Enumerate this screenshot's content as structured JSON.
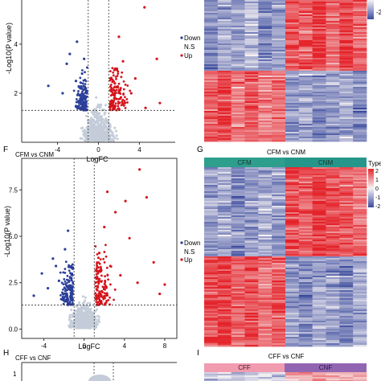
{
  "panel_letters": [
    "F",
    "G",
    "H",
    "I"
  ],
  "legend": {
    "items": [
      {
        "label": "Down",
        "color": "#2b3f9a"
      },
      {
        "label": "N.S",
        "color": "#c3ccd8"
      },
      {
        "label": "Up",
        "color": "#d4141c"
      }
    ]
  },
  "heatmap_colors": {
    "low": "#3a4a9c",
    "mid": "#f6f2f4",
    "high": "#e4232a"
  },
  "group_colors": {
    "CFM": "#2e9e8d",
    "CNM": "#27968a",
    "CFF": "#f19bb0",
    "CNF": "#9265b2"
  },
  "chart_data": [
    {
      "type": "scatter",
      "panel": "E",
      "title": "",
      "xlabel": "LogFC",
      "ylabel": "-Log10(P value)",
      "x_ticks": [
        "-4",
        "0",
        "4"
      ],
      "y_ticks": [
        "2",
        "4"
      ],
      "xlim": [
        -7.5,
        7.5
      ],
      "ylim": [
        0,
        5.8
      ],
      "thresholds": {
        "logfc": [
          -1,
          1
        ],
        "neg_log10_p": 1.3
      },
      "series": [
        {
          "name": "Down",
          "color": "#2b3f9a",
          "points": [
            [
              -4.9,
              2.3
            ],
            [
              -3.1,
              3.2
            ],
            [
              -2.2,
              2.5
            ],
            [
              -2.8,
              3.6
            ],
            [
              -1.6,
              2.8
            ],
            [
              -2.1,
              4.1
            ],
            [
              -1.3,
              1.8
            ],
            [
              -3.5,
              2.0
            ],
            [
              -1.9,
              1.6
            ],
            [
              -1.4,
              3.4
            ]
          ]
        },
        {
          "name": "N.S",
          "color": "#c3ccd8",
          "points": []
        },
        {
          "name": "Up",
          "color": "#d4141c",
          "points": [
            [
              1.6,
              2.4
            ],
            [
              2.4,
              3.3
            ],
            [
              1.3,
              1.7
            ],
            [
              3.2,
              2.0
            ],
            [
              2.0,
              4.3
            ],
            [
              1.8,
              3.0
            ],
            [
              3.6,
              2.6
            ],
            [
              4.6,
              1.4
            ],
            [
              1.2,
              2.1
            ],
            [
              2.6,
              1.6
            ]
          ]
        }
      ],
      "outliers": [
        [
          4.5,
          5.5
        ],
        [
          6.0,
          1.6
        ],
        [
          5.7,
          3.4
        ]
      ]
    },
    {
      "type": "heatmap",
      "panel": "E-heatmap",
      "title": "",
      "rows": 2,
      "columns": 12,
      "values": [
        [
          -0.6,
          -0.4,
          -0.5,
          -0.3,
          -0.6,
          -0.5,
          0.8,
          0.7,
          0.9,
          0.6,
          0.8,
          0.7
        ],
        [
          0.7,
          0.8,
          0.6,
          0.7,
          0.5,
          0.6,
          -0.5,
          -0.4,
          -0.6,
          -0.5,
          -0.4,
          -0.6
        ]
      ],
      "scale_ticks": [
        "-2"
      ]
    },
    {
      "type": "scatter",
      "panel": "F",
      "title": "CFM vs CNM",
      "xlabel": "LogFC",
      "ylabel": "-Log10(P value)",
      "x_ticks": [
        "-4",
        "0",
        "4",
        "8"
      ],
      "y_ticks": [
        "0.0",
        "2.5",
        "5.0",
        "7.5"
      ],
      "xlim": [
        -6.2,
        9.2
      ],
      "ylim": [
        -0.5,
        9.2
      ],
      "thresholds": {
        "logfc": [
          -1,
          1
        ],
        "neg_log10_p": 1.3
      },
      "series": [
        {
          "name": "Down",
          "color": "#2b3f9a",
          "points": [
            [
              -3.1,
              3.8
            ],
            [
              -1.6,
              5.3
            ],
            [
              -2.5,
              2.6
            ],
            [
              -1.3,
              1.9
            ],
            [
              -4.2,
              3.0
            ],
            [
              -1.9,
              4.3
            ],
            [
              -3.6,
              2.2
            ],
            [
              -2.2,
              1.6
            ],
            [
              -1.4,
              2.8
            ],
            [
              -5.0,
              1.8
            ],
            [
              -2.8,
              3.4
            ],
            [
              -1.7,
              2.3
            ]
          ]
        },
        {
          "name": "N.S",
          "color": "#c3ccd8",
          "points": []
        },
        {
          "name": "Up",
          "color": "#d4141c",
          "points": [
            [
              5.5,
              8.6
            ],
            [
              6.2,
              7.1
            ],
            [
              3.1,
              6.3
            ],
            [
              2.0,
              5.5
            ],
            [
              4.5,
              4.9
            ],
            [
              6.9,
              3.6
            ],
            [
              1.5,
              4.1
            ],
            [
              3.6,
              2.9
            ],
            [
              5.3,
              2.5
            ],
            [
              7.5,
              1.9
            ],
            [
              2.6,
              3.4
            ],
            [
              8.0,
              2.4
            ],
            [
              1.3,
              2.1
            ],
            [
              4.1,
              6.9
            ],
            [
              2.3,
              7.4
            ]
          ]
        }
      ]
    },
    {
      "type": "heatmap",
      "panel": "G",
      "title": "CFM vs CNM",
      "legend_title": "Type",
      "groups": [
        {
          "name": "CFM",
          "columns": 6
        },
        {
          "name": "CNM",
          "columns": 6
        }
      ],
      "rows": 2,
      "values": [
        [
          -0.5,
          -0.4,
          -0.6,
          -0.5,
          -0.4,
          -0.5,
          0.8,
          0.7,
          0.9,
          0.8,
          0.7,
          0.6
        ],
        [
          0.8,
          0.9,
          0.7,
          0.8,
          0.6,
          0.7,
          -0.5,
          -0.6,
          -0.4,
          -0.5,
          -0.6,
          -0.4
        ]
      ],
      "scale_ticks": [
        "2",
        "1",
        "0",
        "-1",
        "-2"
      ]
    },
    {
      "type": "scatter",
      "panel": "H",
      "title": "CFF vs CNF",
      "xlabel": "",
      "ylabel": "",
      "series": []
    },
    {
      "type": "heatmap",
      "panel": "I",
      "title": "CFF vs CNF",
      "groups": [
        {
          "name": "CFF",
          "columns": 6
        },
        {
          "name": "CNF",
          "columns": 6
        }
      ],
      "rows": 1,
      "values": [
        [
          -0.3,
          -0.2,
          -0.3,
          -0.1,
          -0.2,
          -0.3,
          0.4,
          0.3,
          0.4,
          0.3,
          0.4,
          0.3
        ]
      ]
    }
  ]
}
